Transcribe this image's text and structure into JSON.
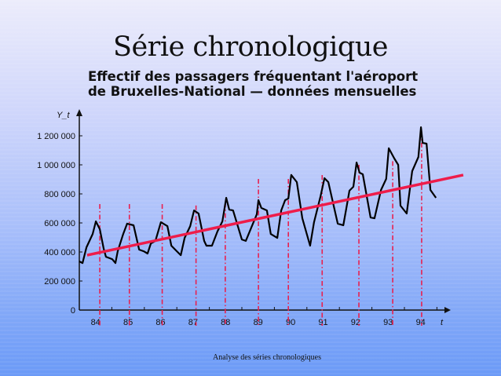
{
  "slide": {
    "title": "Série chronologique",
    "subtitle_line1": "Effectif des passagers fréquentant l'aéroport",
    "subtitle_line2": "de Bruxelles-National — données mensuelles",
    "footer": "Analyse des séries chronologiques"
  },
  "chart_data": {
    "type": "line",
    "title": "Effectif des passagers fréquentant l'aéroport de Bruxelles-National — données mensuelles",
    "xlabel": "t",
    "ylabel": "Y_t",
    "xlim": [
      84,
      95.4
    ],
    "ylim": [
      0,
      1300000
    ],
    "yticks": [
      0,
      200000,
      400000,
      600000,
      800000,
      1000000,
      1200000
    ],
    "ytick_labels": [
      "0",
      "200 000",
      "400 000",
      "600 000",
      "800 000",
      "1 000 000",
      "1 200 000"
    ],
    "xtick_labels": [
      "84",
      "85",
      "86",
      "87",
      "88",
      "89",
      "90",
      "91",
      "92",
      "93",
      "94"
    ],
    "grid": false,
    "colors": {
      "series": "#000000",
      "trend": "#ee1c4a",
      "markers": "#e8204f"
    },
    "series": [
      {
        "values_t": [
          84.0,
          84.1,
          84.22,
          84.41,
          84.51,
          84.63,
          84.75,
          84.82,
          85.01,
          85.11,
          85.18,
          85.35,
          85.47,
          85.67,
          85.84,
          85.98,
          86.1,
          86.2,
          86.34,
          86.51,
          86.71,
          86.83,
          86.95,
          87.12,
          87.24,
          87.41,
          87.53,
          87.67,
          87.84,
          87.91,
          88.08,
          88.25,
          88.4,
          88.52,
          88.61,
          88.73,
          89.0,
          89.12,
          89.29,
          89.46,
          89.51,
          89.6,
          89.77,
          89.89,
          90.09,
          90.21,
          90.33,
          90.43,
          90.52,
          90.69,
          90.86,
          91.1,
          91.22,
          91.42,
          91.54,
          91.66,
          91.95,
          92.12,
          92.31,
          92.43,
          92.53,
          92.62,
          92.72,
          92.96,
          93.08,
          93.28,
          93.44,
          93.52,
          93.69,
          93.81,
          93.88,
          94.07,
          94.24,
          94.43,
          94.51,
          94.56,
          94.68,
          94.8,
          94.97
        ],
        "values_y": [
          335000,
          324000,
          432000,
          524000,
          611000,
          557000,
          421000,
          367000,
          351000,
          324000,
          405000,
          524000,
          595000,
          584000,
          416000,
          405000,
          389000,
          459000,
          476000,
          605000,
          578000,
          443000,
          416000,
          378000,
          497000,
          578000,
          686000,
          665000,
          476000,
          443000,
          443000,
          541000,
          611000,
          773000,
          692000,
          686000,
          486000,
          476000,
          568000,
          659000,
          757000,
          703000,
          686000,
          524000,
          497000,
          686000,
          757000,
          768000,
          930000,
          881000,
          632000,
          443000,
          605000,
          784000,
          908000,
          881000,
          595000,
          584000,
          822000,
          849000,
          1016000,
          946000,
          935000,
          638000,
          632000,
          827000,
          903000,
          1114000,
          1043000,
          1000000,
          719000,
          665000,
          957000,
          1054000,
          1259000,
          1151000,
          1146000,
          827000,
          773000
        ]
      }
    ],
    "trend_line": {
      "t": [
        84.24,
        95.81
      ],
      "y": [
        378000,
        930000
      ]
    },
    "vertical_markers": {
      "t": [
        84.63,
        85.54,
        86.55,
        87.59,
        88.49,
        89.51,
        90.43,
        91.47,
        92.6,
        93.64,
        94.53
      ],
      "y_top": [
        730000,
        730000,
        730000,
        720000,
        740000,
        903000,
        903000,
        930000,
        1000000,
        1025000,
        1225000
      ]
    }
  }
}
